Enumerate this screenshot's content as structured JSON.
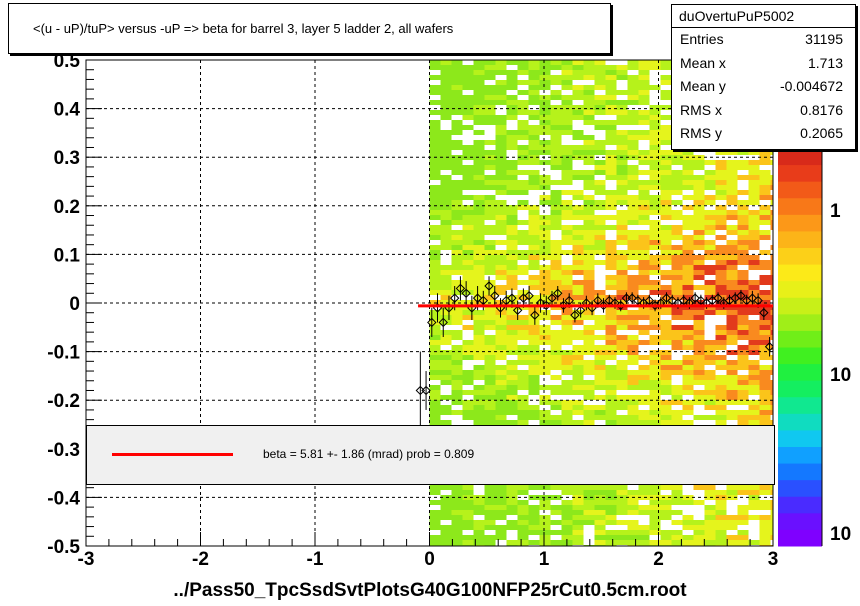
{
  "title": "<(u - uP)/tuP>  versus  -uP => beta for barrel 3, layer 5 ladder 2, all wafers",
  "stats": {
    "name": "duOvertuPuP5002",
    "rows": [
      {
        "label": "Entries",
        "value": "31195"
      },
      {
        "label": "Mean x",
        "value": "1.713"
      },
      {
        "label": "Mean y",
        "value": "-0.004672"
      },
      {
        "label": "RMS x",
        "value": "0.8176"
      },
      {
        "label": "RMS y",
        "value": "0.2065"
      }
    ]
  },
  "fit_legend": "beta =    5.81  +-  1.86 (mrad) prob = 0.809",
  "xaxis_title": "../Pass50_TpcSsdSvtPlotsG40G100NFP25rCut0.5cm.root",
  "colors": {
    "fit_line": "#ff0000",
    "marker": "#000000",
    "grid": "#000000"
  },
  "chart_data": {
    "type": "heatmap",
    "title": "<(u - uP)/tuP>  versus  -uP => beta for barrel 3, layer 5 ladder 2, all wafers",
    "xlabel": "../Pass50_TpcSsdSvtPlotsG40G100NFP25rCut0.5cm.root",
    "ylabel": "",
    "xlim": [
      -3,
      3
    ],
    "ylim": [
      -0.5,
      0.5
    ],
    "x_ticks": [
      "-3",
      "-2",
      "-1",
      "0",
      "1",
      "2",
      "3"
    ],
    "y_ticks": [
      "-0.5",
      "-0.4",
      "-0.3",
      "-0.2",
      "-0.1",
      "0",
      "0.1",
      "0.2",
      "0.3",
      "0.4",
      "0.5"
    ],
    "grid": true,
    "heatmap_x_range": [
      0,
      3
    ],
    "color_scale": "log",
    "colorbar_labels": [
      "1",
      "10",
      "10"
    ],
    "fit": {
      "type": "line",
      "x_range": [
        -0.1,
        3
      ],
      "y": -0.006
    },
    "profile_points": [
      {
        "x": -0.08,
        "y": -0.18,
        "err": 0.08
      },
      {
        "x": -0.03,
        "y": -0.18,
        "err": 0.04
      },
      {
        "x": 0.02,
        "y": -0.04,
        "err": 0.03
      },
      {
        "x": 0.07,
        "y": -0.01,
        "err": 0.03
      },
      {
        "x": 0.12,
        "y": -0.04,
        "err": 0.03
      },
      {
        "x": 0.17,
        "y": -0.01,
        "err": 0.025
      },
      {
        "x": 0.22,
        "y": 0.01,
        "err": 0.025
      },
      {
        "x": 0.27,
        "y": 0.03,
        "err": 0.025
      },
      {
        "x": 0.32,
        "y": 0.02,
        "err": 0.025
      },
      {
        "x": 0.37,
        "y": -0.01,
        "err": 0.025
      },
      {
        "x": 0.42,
        "y": 0.01,
        "err": 0.025
      },
      {
        "x": 0.47,
        "y": 0.005,
        "err": 0.02
      },
      {
        "x": 0.52,
        "y": 0.035,
        "err": 0.02
      },
      {
        "x": 0.57,
        "y": 0.015,
        "err": 0.02
      },
      {
        "x": 0.62,
        "y": -0.01,
        "err": 0.02
      },
      {
        "x": 0.67,
        "y": 0.005,
        "err": 0.02
      },
      {
        "x": 0.72,
        "y": 0.01,
        "err": 0.02
      },
      {
        "x": 0.77,
        "y": -0.015,
        "err": 0.02
      },
      {
        "x": 0.82,
        "y": 0.01,
        "err": 0.02
      },
      {
        "x": 0.87,
        "y": 0.015,
        "err": 0.02
      },
      {
        "x": 0.92,
        "y": -0.025,
        "err": 0.02
      },
      {
        "x": 0.97,
        "y": 0.0,
        "err": 0.02
      },
      {
        "x": 1.02,
        "y": -0.005,
        "err": 0.02
      },
      {
        "x": 1.07,
        "y": 0.01,
        "err": 0.015
      },
      {
        "x": 1.12,
        "y": 0.02,
        "err": 0.015
      },
      {
        "x": 1.17,
        "y": -0.005,
        "err": 0.015
      },
      {
        "x": 1.22,
        "y": 0.005,
        "err": 0.015
      },
      {
        "x": 1.27,
        "y": -0.025,
        "err": 0.015
      },
      {
        "x": 1.32,
        "y": -0.015,
        "err": 0.015
      },
      {
        "x": 1.37,
        "y": 0.0,
        "err": 0.015
      },
      {
        "x": 1.42,
        "y": -0.01,
        "err": 0.015
      },
      {
        "x": 1.47,
        "y": 0.005,
        "err": 0.015
      },
      {
        "x": 1.52,
        "y": -0.005,
        "err": 0.015
      },
      {
        "x": 1.57,
        "y": 0.005,
        "err": 0.012
      },
      {
        "x": 1.62,
        "y": 0.0,
        "err": 0.012
      },
      {
        "x": 1.67,
        "y": -0.005,
        "err": 0.012
      },
      {
        "x": 1.72,
        "y": 0.01,
        "err": 0.012
      },
      {
        "x": 1.77,
        "y": 0.01,
        "err": 0.012
      },
      {
        "x": 1.82,
        "y": 0.005,
        "err": 0.012
      },
      {
        "x": 1.87,
        "y": 0.0,
        "err": 0.012
      },
      {
        "x": 1.92,
        "y": 0.005,
        "err": 0.012
      },
      {
        "x": 1.97,
        "y": -0.005,
        "err": 0.012
      },
      {
        "x": 2.02,
        "y": 0.0,
        "err": 0.012
      },
      {
        "x": 2.07,
        "y": 0.01,
        "err": 0.012
      },
      {
        "x": 2.12,
        "y": 0.005,
        "err": 0.012
      },
      {
        "x": 2.17,
        "y": 0.0,
        "err": 0.012
      },
      {
        "x": 2.22,
        "y": 0.005,
        "err": 0.012
      },
      {
        "x": 2.27,
        "y": 0.0,
        "err": 0.012
      },
      {
        "x": 2.32,
        "y": 0.01,
        "err": 0.012
      },
      {
        "x": 2.37,
        "y": 0.005,
        "err": 0.012
      },
      {
        "x": 2.42,
        "y": 0.0,
        "err": 0.012
      },
      {
        "x": 2.47,
        "y": 0.005,
        "err": 0.012
      },
      {
        "x": 2.52,
        "y": 0.01,
        "err": 0.012
      },
      {
        "x": 2.57,
        "y": 0.0,
        "err": 0.012
      },
      {
        "x": 2.62,
        "y": 0.005,
        "err": 0.012
      },
      {
        "x": 2.67,
        "y": 0.01,
        "err": 0.012
      },
      {
        "x": 2.72,
        "y": 0.015,
        "err": 0.012
      },
      {
        "x": 2.77,
        "y": 0.005,
        "err": 0.012
      },
      {
        "x": 2.82,
        "y": 0.01,
        "err": 0.015
      },
      {
        "x": 2.87,
        "y": 0.005,
        "err": 0.015
      },
      {
        "x": 2.92,
        "y": -0.02,
        "err": 0.015
      },
      {
        "x": 2.97,
        "y": -0.09,
        "err": 0.02
      }
    ]
  }
}
